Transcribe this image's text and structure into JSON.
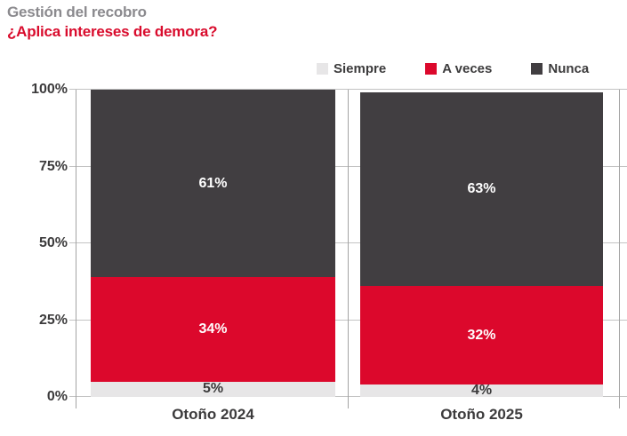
{
  "header": {
    "title": "Gestión del recobro",
    "subtitle": "¿Aplica intereses de demora?"
  },
  "colors": {
    "title_gray": "#8b8a8e",
    "accent_red": "#d90c2d",
    "segment_red": "#dc082c",
    "segment_dark": "#413e41",
    "segment_light": "#e7e6e7",
    "text_dark": "#3c3b3c",
    "grid_gray": "#c3c3c3",
    "axis_gray": "#a3a3a3"
  },
  "legend": {
    "items": [
      {
        "label": "Siempre",
        "color": "#e7e6e7"
      },
      {
        "label": "A veces",
        "color": "#dc082c"
      },
      {
        "label": "Nunca",
        "color": "#413e41"
      }
    ]
  },
  "chart_data": {
    "type": "bar",
    "stacked": true,
    "title": "Gestión del recobro",
    "subtitle": "¿Aplica intereses de demora?",
    "categories": [
      "Otoño 2024",
      "Otoño 2025"
    ],
    "series": [
      {
        "name": "Siempre",
        "color": "#e7e6e7",
        "values": [
          5,
          4
        ],
        "data_labels": [
          "5%",
          "4%"
        ],
        "label_color": "#3c3b3c"
      },
      {
        "name": "A veces",
        "color": "#dc082c",
        "values": [
          34,
          32
        ],
        "data_labels": [
          "34%",
          "32%"
        ],
        "label_color": "#ffffff"
      },
      {
        "name": "Nunca",
        "color": "#413e41",
        "values": [
          61,
          63
        ],
        "data_labels": [
          "61%",
          "63%"
        ],
        "label_color": "#ffffff"
      }
    ],
    "xlabel": "",
    "ylabel": "",
    "ylim": [
      0,
      100
    ],
    "yticks": [
      "0%",
      "25%",
      "50%",
      "75%",
      "100%"
    ],
    "grid": true,
    "legend_position": "top-right"
  }
}
